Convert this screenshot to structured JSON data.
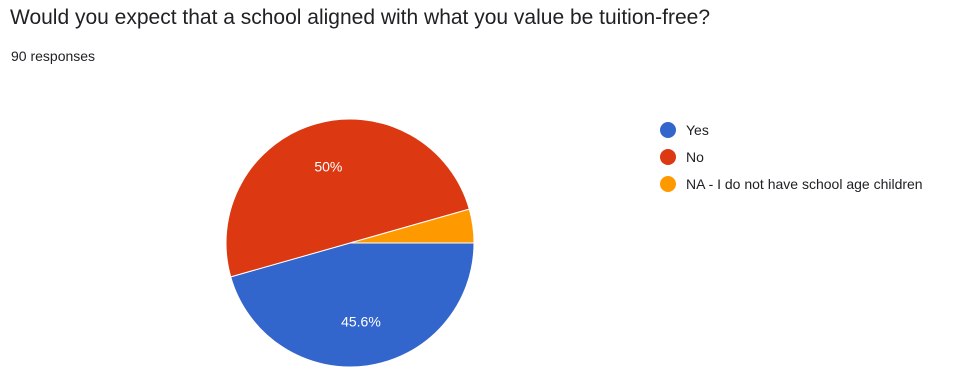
{
  "question": {
    "title": "Would you expect that a school aligned with what you value be tuition-free?",
    "responses": "90 responses"
  },
  "chart_data": {
    "type": "pie",
    "title": "Would you expect that a school aligned with what you value be tuition-free?",
    "total_responses": 90,
    "slices": [
      {
        "label": "Yes",
        "percent": 45.6,
        "display": "45.6%",
        "color": "#3366cc"
      },
      {
        "label": "No",
        "percent": 50.0,
        "display": "50%",
        "color": "#dc3912"
      },
      {
        "label": "NA - I do not have school age children",
        "percent": 4.4,
        "display": "",
        "color": "#ff9900"
      }
    ],
    "legend_position": "right"
  }
}
